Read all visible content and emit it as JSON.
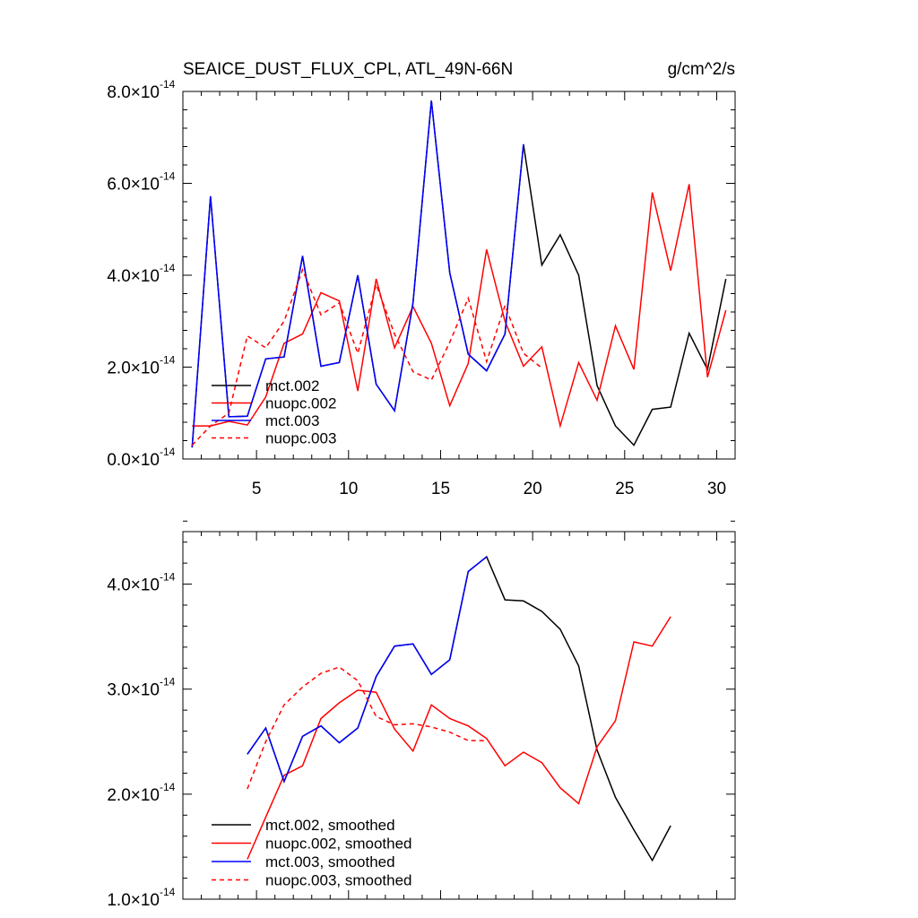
{
  "chart_data": [
    {
      "type": "line",
      "title": "SEAICE_DUST_FLUX_CPL, ATL_49N-66N",
      "units": "g/cm^2/s",
      "xlim": [
        1,
        31
      ],
      "ylim": [
        0,
        8e-14
      ],
      "x_ticks": [
        5,
        10,
        15,
        20,
        25,
        30
      ],
      "x_tick_labels": [
        "5",
        "10",
        "15",
        "20",
        "25",
        "30"
      ],
      "y_ticks": [
        0,
        2e-14,
        4e-14,
        6e-14,
        8e-14
      ],
      "y_tick_labels": [
        {
          "mantissa": "0.0",
          "times": "×",
          "base": "10",
          "exponent": "-14"
        },
        {
          "mantissa": "2.0",
          "times": "×",
          "base": "10",
          "exponent": "-14"
        },
        {
          "mantissa": "4.0",
          "times": "×",
          "base": "10",
          "exponent": "-14"
        },
        {
          "mantissa": "6.0",
          "times": "×",
          "base": "10",
          "exponent": "-14"
        },
        {
          "mantissa": "8.0",
          "times": "×",
          "base": "10",
          "exponent": "-14"
        }
      ],
      "legend_position": "bottom-left",
      "series": [
        {
          "name": "mct.002",
          "color": "#000000",
          "dash": "solid",
          "x": [
            1.5,
            2.5,
            3.5,
            4.5,
            5.5,
            6.5,
            7.5,
            8.5,
            9.5,
            10.5,
            11.5,
            12.5,
            13.5,
            14.5,
            15.5,
            16.5,
            17.5,
            18.5,
            19.5,
            20.5,
            21.5,
            22.5,
            23.5,
            24.5,
            25.5,
            26.5,
            27.5,
            28.5,
            29.5,
            30.5
          ],
          "values": [
            2.5e-15,
            5.72e-14,
            9.2e-15,
            9.3e-15,
            2.18e-14,
            2.22e-14,
            4.42e-14,
            2.02e-14,
            2.1e-14,
            4e-14,
            1.63e-14,
            1.05e-14,
            3.4e-14,
            7.8e-14,
            4.05e-14,
            2.28e-14,
            1.92e-14,
            2.72e-14,
            6.85e-14,
            4.22e-14,
            4.88e-14,
            4e-14,
            1.6e-14,
            7.2e-15,
            3e-15,
            1.08e-14,
            1.13e-14,
            2.74e-14,
            1.95e-14,
            3.92e-14
          ]
        },
        {
          "name": "nuopc.002",
          "color": "#ff0000",
          "dash": "solid",
          "x": [
            1.5,
            2.5,
            3.5,
            4.5,
            5.5,
            6.5,
            7.5,
            8.5,
            9.5,
            10.5,
            11.5,
            12.5,
            13.5,
            14.5,
            15.5,
            16.5,
            17.5,
            18.5,
            19.5,
            20.5,
            21.5,
            22.5,
            23.5,
            24.5,
            25.5,
            26.5,
            27.5,
            28.5,
            29.5,
            30.5
          ],
          "values": [
            7.2e-15,
            7.2e-15,
            8.2e-15,
            7.4e-15,
            1.35e-14,
            2.52e-14,
            2.72e-14,
            3.62e-14,
            3.44e-14,
            1.48e-14,
            3.92e-14,
            2.42e-14,
            3.32e-14,
            2.52e-14,
            1.16e-14,
            2.08e-14,
            4.56e-14,
            3e-14,
            2.02e-14,
            2.44e-14,
            7.2e-15,
            2.1e-14,
            1.28e-14,
            2.9e-14,
            1.95e-14,
            5.8e-14,
            4.1e-14,
            5.98e-14,
            1.78e-14,
            3.24e-14
          ]
        },
        {
          "name": "mct.003",
          "color": "#0000ff",
          "dash": "solid",
          "x": [
            1.5,
            2.5,
            3.5,
            4.5,
            5.5,
            6.5,
            7.5,
            8.5,
            9.5,
            10.5,
            11.5,
            12.5,
            13.5,
            14.5,
            15.5,
            16.5,
            17.5,
            18.5,
            19.5
          ],
          "values": [
            2.5e-15,
            5.72e-14,
            9.2e-15,
            9.3e-15,
            2.18e-14,
            2.22e-14,
            4.42e-14,
            2.02e-14,
            2.1e-14,
            4e-14,
            1.63e-14,
            1.05e-14,
            3.4e-14,
            7.8e-14,
            4.05e-14,
            2.28e-14,
            1.92e-14,
            2.72e-14,
            6.85e-14
          ]
        },
        {
          "name": "nuopc.003",
          "color": "#ff0000",
          "dash": "dashed",
          "x": [
            1.5,
            2.5,
            3.5,
            4.5,
            5.5,
            6.5,
            7.5,
            8.5,
            9.5,
            10.5,
            11.5,
            12.5,
            13.5,
            14.5,
            15.5,
            16.5,
            17.5,
            18.5,
            19.5,
            20.5
          ],
          "values": [
            3e-15,
            7.2e-15,
            1e-14,
            2.68e-14,
            2.42e-14,
            3e-14,
            4.12e-14,
            3.14e-14,
            3.4e-14,
            2.3e-14,
            3.8e-14,
            2.72e-14,
            1.9e-14,
            1.72e-14,
            2.54e-14,
            3.5e-14,
            2.12e-14,
            3.34e-14,
            2.3e-14,
            1.98e-14
          ]
        }
      ]
    },
    {
      "type": "line",
      "title": "",
      "xlim": [
        1,
        31
      ],
      "ylim": [
        1e-14,
        4.5e-14
      ],
      "x_ticks": [
        5,
        10,
        15,
        20,
        25,
        30
      ],
      "y_ticks": [
        1e-14,
        2e-14,
        3e-14,
        4e-14
      ],
      "y_tick_labels": [
        {
          "mantissa": "1.0",
          "times": "×",
          "base": "10",
          "exponent": "-14"
        },
        {
          "mantissa": "2.0",
          "times": "×",
          "base": "10",
          "exponent": "-14"
        },
        {
          "mantissa": "3.0",
          "times": "×",
          "base": "10",
          "exponent": "-14"
        },
        {
          "mantissa": "4.0",
          "times": "×",
          "base": "10",
          "exponent": "-14"
        }
      ],
      "legend_position": "bottom-left",
      "series": [
        {
          "name": "mct.002, smoothed",
          "color": "#000000",
          "dash": "solid",
          "x": [
            4.5,
            5.5,
            6.5,
            7.5,
            8.5,
            9.5,
            10.5,
            11.5,
            12.5,
            13.5,
            14.5,
            15.5,
            16.5,
            17.5,
            18.5,
            19.5,
            20.5,
            21.5,
            22.5,
            23.5,
            24.5,
            25.5,
            26.5,
            27.5
          ],
          "values": [
            2.38e-14,
            2.63e-14,
            2.12e-14,
            2.55e-14,
            2.65e-14,
            2.49e-14,
            2.63e-14,
            3.12e-14,
            3.41e-14,
            3.43e-14,
            3.14e-14,
            3.28e-14,
            4.12e-14,
            4.26e-14,
            3.85e-14,
            3.84e-14,
            3.74e-14,
            3.57e-14,
            3.22e-14,
            2.42e-14,
            1.97e-14,
            1.66e-14,
            1.37e-14,
            1.7e-14
          ]
        },
        {
          "name": "nuopc.002, smoothed",
          "color": "#ff0000",
          "dash": "solid",
          "x": [
            4.5,
            5.5,
            6.5,
            7.5,
            8.5,
            9.5,
            10.5,
            11.5,
            12.5,
            13.5,
            14.5,
            15.5,
            16.5,
            17.5,
            18.5,
            19.5,
            20.5,
            21.5,
            22.5,
            23.5,
            24.5,
            25.5,
            26.5,
            27.5
          ],
          "values": [
            1.38e-14,
            1.78e-14,
            2.18e-14,
            2.27e-14,
            2.72e-14,
            2.87e-14,
            2.99e-14,
            2.97e-14,
            2.62e-14,
            2.41e-14,
            2.85e-14,
            2.72e-14,
            2.65e-14,
            2.53e-14,
            2.27e-14,
            2.4e-14,
            2.3e-14,
            2.06e-14,
            1.91e-14,
            2.45e-14,
            2.7e-14,
            3.45e-14,
            3.41e-14,
            3.69e-14
          ]
        },
        {
          "name": "mct.003, smoothed",
          "color": "#0000ff",
          "dash": "solid",
          "x": [
            4.5,
            5.5,
            6.5,
            7.5,
            8.5,
            9.5,
            10.5,
            11.5,
            12.5,
            13.5,
            14.5,
            15.5,
            16.5,
            17.5
          ],
          "values": [
            2.38e-14,
            2.63e-14,
            2.12e-14,
            2.55e-14,
            2.65e-14,
            2.49e-14,
            2.63e-14,
            3.12e-14,
            3.41e-14,
            3.43e-14,
            3.14e-14,
            3.28e-14,
            4.12e-14,
            4.26e-14
          ]
        },
        {
          "name": "nuopc.003, smoothed",
          "color": "#ff0000",
          "dash": "dashed",
          "x": [
            4.5,
            5.5,
            6.5,
            7.5,
            8.5,
            9.5,
            10.5,
            11.5,
            12.5,
            13.5,
            14.5,
            15.5,
            16.5,
            17.5
          ],
          "values": [
            2.05e-14,
            2.5e-14,
            2.85e-14,
            3.02e-14,
            3.15e-14,
            3.21e-14,
            3.08e-14,
            2.74e-14,
            2.66e-14,
            2.67e-14,
            2.64e-14,
            2.59e-14,
            2.51e-14,
            2.51e-14
          ]
        }
      ]
    }
  ]
}
